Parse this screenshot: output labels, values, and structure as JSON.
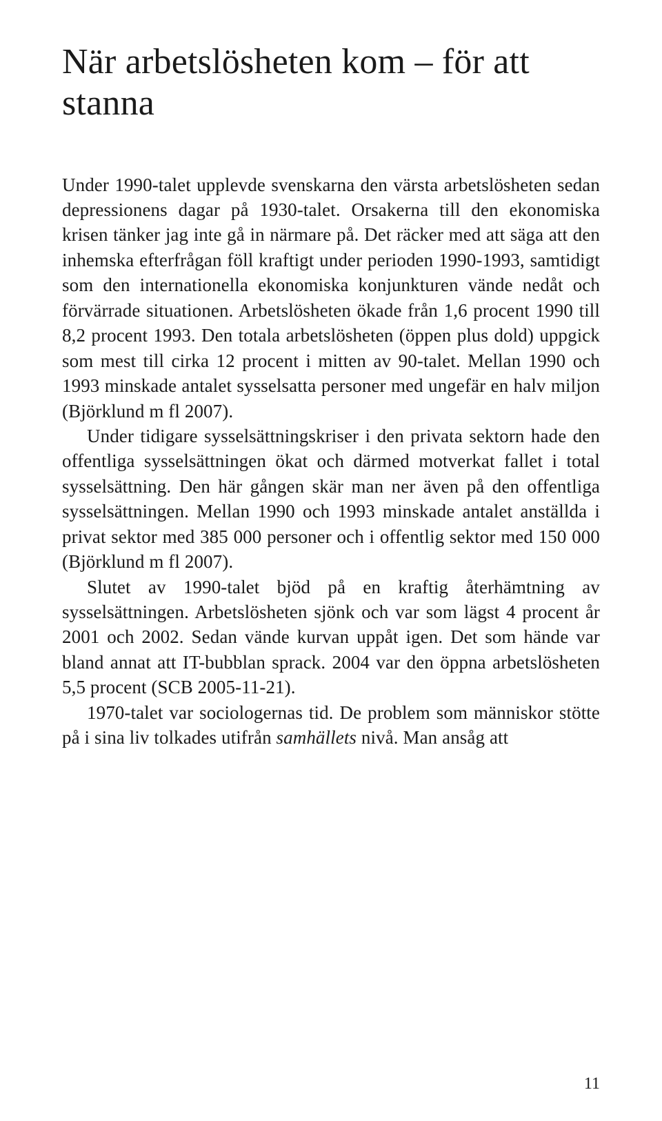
{
  "title": "När arbetslösheten kom – för att stanna",
  "paragraphs": [
    {
      "indent": false,
      "segments": [
        {
          "text": "Under 1990-talet upplevde svenskarna den värsta arbetslösheten sedan depressionens dagar på 1930-talet. Orsakerna till den ekonomiska krisen tänker jag inte gå in närmare på. Det räcker med att säga att den inhemska efterfrågan föll kraftigt under perioden 1990-1993, samtidigt som den internationella ekonomiska konjunkturen vände nedåt och förvärrade situationen. Arbetslösheten ökade från 1,6 procent 1990 till 8,2 procent 1993. Den totala arbetslösheten (öppen plus dold) uppgick som mest till cirka 12 procent i mitten av 90-talet. Mellan 1990 och 1993 minskade antalet sysselsatta personer med ungefär en halv miljon (Björklund m fl 2007).",
          "italic": false
        }
      ]
    },
    {
      "indent": true,
      "segments": [
        {
          "text": "Under tidigare sysselsättningskriser i den privata sektorn hade den offentliga sysselsättningen ökat och därmed motverkat fallet i total sysselsättning. Den här gången skär man ner även på den offentliga sysselsättningen. Mellan 1990 och 1993 minskade antalet anställda i privat sektor med 385 000 personer och i offentlig sektor med 150 000 (Björklund m fl 2007).",
          "italic": false
        }
      ]
    },
    {
      "indent": true,
      "segments": [
        {
          "text": "Slutet av 1990-talet bjöd på en kraftig återhämtning av sysselsättningen. Arbetslösheten sjönk och var som lägst 4 procent år 2001 och 2002. Sedan vände kurvan uppåt igen. Det som hände var bland annat att IT-bubblan sprack. 2004 var den öppna arbetslösheten 5,5 procent (SCB 2005-11-21).",
          "italic": false
        }
      ]
    },
    {
      "indent": true,
      "segments": [
        {
          "text": "1970-talet var sociologernas tid. De problem som människor stötte på i sina liv tolkades utifrån ",
          "italic": false
        },
        {
          "text": "samhällets",
          "italic": true
        },
        {
          "text": " nivå. Man ansåg att",
          "italic": false
        }
      ]
    }
  ],
  "pageNumber": "11",
  "colors": {
    "text": "#1a1a1a",
    "background": "#ffffff"
  },
  "typography": {
    "titleFontSize": 52,
    "bodyFontSize": 27,
    "bodyLineHeight": 1.35,
    "fontFamily": "Georgia serif"
  }
}
